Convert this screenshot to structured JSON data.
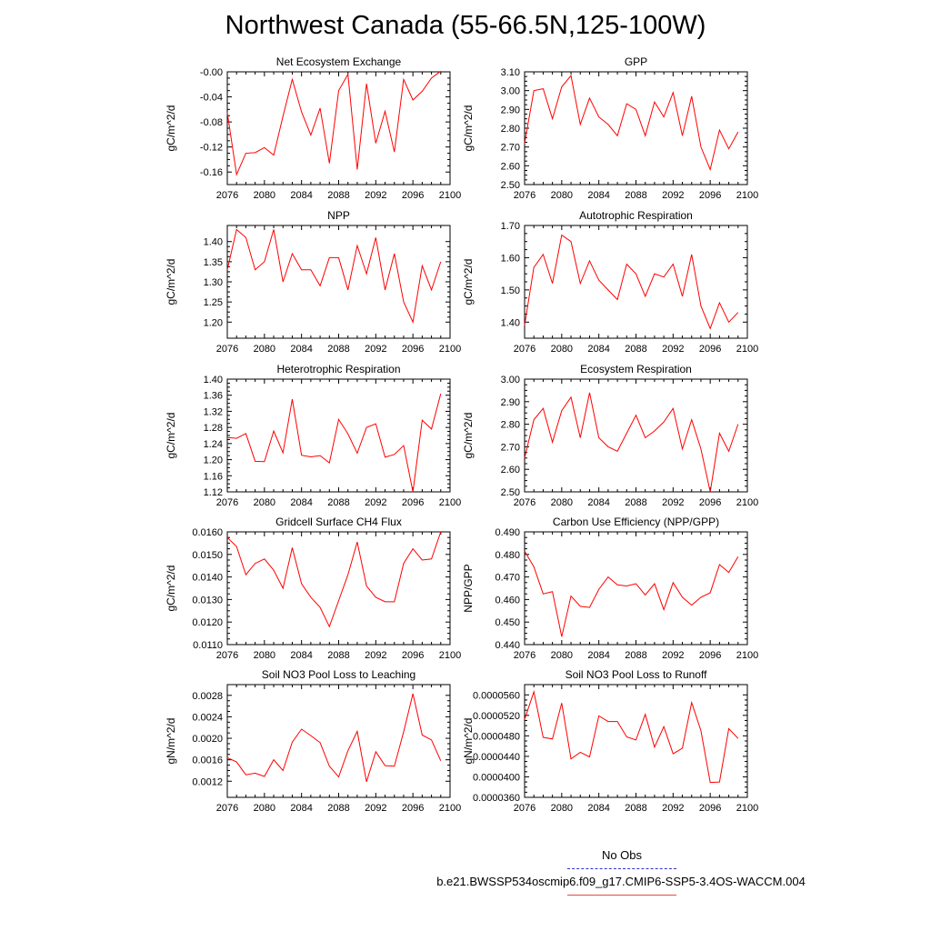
{
  "title": "Northwest Canada (55-66.5N,125-100W)",
  "colors": {
    "series": "#ff0000",
    "obs": "#3333cc",
    "axis": "#000000"
  },
  "legend": {
    "obs_label": "No Obs",
    "run_label": "b.e21.BWSSP534oscmip6.f09_g17.CMIP6-SSP5-3.4OS-WACCM.004"
  },
  "chart_data": [
    {
      "type": "line",
      "title": "Net Ecosystem Exchange",
      "xlabel": "",
      "ylabel": "gC/m^2/d",
      "xlim": [
        2076,
        2100
      ],
      "xticks": [
        "2076",
        "2080",
        "2084",
        "2088",
        "2092",
        "2096",
        "2100"
      ],
      "ylim": [
        -0.18,
        -0.0
      ],
      "yticks": [
        "-0.16",
        "-0.12",
        "-0.08",
        "-0.04",
        "-0.00"
      ],
      "x": [
        2076,
        2077,
        2078,
        2079,
        2080,
        2081,
        2082,
        2083,
        2084,
        2085,
        2086,
        2087,
        2088,
        2089,
        2090,
        2091,
        2092,
        2093,
        2094,
        2095,
        2096,
        2097,
        2098,
        2099
      ],
      "series": [
        {
          "name": "b.e21.BWSSP534oscmip6.f09_g17.CMIP6-SSP5-3.4OS-WACCM.004",
          "values": [
            -0.065,
            -0.164,
            -0.13,
            -0.129,
            -0.121,
            -0.133,
            -0.071,
            -0.012,
            -0.064,
            -0.101,
            -0.058,
            -0.146,
            -0.03,
            -0.004,
            -0.156,
            -0.019,
            -0.114,
            -0.063,
            -0.128,
            -0.012,
            -0.045,
            -0.031,
            -0.01,
            0.001
          ]
        }
      ]
    },
    {
      "type": "line",
      "title": "GPP",
      "xlabel": "",
      "ylabel": "gC/m^2/d",
      "xlim": [
        2076,
        2100
      ],
      "xticks": [
        "2076",
        "2080",
        "2084",
        "2088",
        "2092",
        "2096",
        "2100"
      ],
      "ylim": [
        2.5,
        3.1
      ],
      "yticks": [
        "2.50",
        "2.60",
        "2.70",
        "2.80",
        "2.90",
        "3.00",
        "3.10"
      ],
      "x": [
        2076,
        2077,
        2078,
        2079,
        2080,
        2081,
        2082,
        2083,
        2084,
        2085,
        2086,
        2087,
        2088,
        2089,
        2090,
        2091,
        2092,
        2093,
        2094,
        2095,
        2096,
        2097,
        2098,
        2099
      ],
      "series": [
        {
          "name": "b.e21.BWSSP534oscmip6.f09_g17.CMIP6-SSP5-3.4OS-WACCM.004",
          "values": [
            2.72,
            3.0,
            3.01,
            2.85,
            3.02,
            3.08,
            2.82,
            2.96,
            2.86,
            2.82,
            2.76,
            2.93,
            2.9,
            2.76,
            2.94,
            2.86,
            2.99,
            2.76,
            2.97,
            2.7,
            2.58,
            2.79,
            2.69,
            2.78
          ]
        }
      ]
    },
    {
      "type": "line",
      "title": "NPP",
      "xlabel": "",
      "ylabel": "gC/m^2/d",
      "xlim": [
        2076,
        2100
      ],
      "xticks": [
        "2076",
        "2080",
        "2084",
        "2088",
        "2092",
        "2096",
        "2100"
      ],
      "ylim": [
        1.16,
        1.44
      ],
      "yticks": [
        "1.20",
        "1.25",
        "1.30",
        "1.35",
        "1.40"
      ],
      "x": [
        2076,
        2077,
        2078,
        2079,
        2080,
        2081,
        2082,
        2083,
        2084,
        2085,
        2086,
        2087,
        2088,
        2089,
        2090,
        2091,
        2092,
        2093,
        2094,
        2095,
        2096,
        2097,
        2098,
        2099
      ],
      "series": [
        {
          "name": "b.e21.BWSSP534oscmip6.f09_g17.CMIP6-SSP5-3.4OS-WACCM.004",
          "values": [
            1.33,
            1.43,
            1.41,
            1.33,
            1.35,
            1.43,
            1.3,
            1.37,
            1.33,
            1.33,
            1.29,
            1.36,
            1.36,
            1.28,
            1.39,
            1.32,
            1.41,
            1.28,
            1.37,
            1.25,
            1.2,
            1.34,
            1.28,
            1.35
          ]
        }
      ]
    },
    {
      "type": "line",
      "title": "Autotrophic Respiration",
      "xlabel": "",
      "ylabel": "gC/m^2/d",
      "xlim": [
        2076,
        2100
      ],
      "xticks": [
        "2076",
        "2080",
        "2084",
        "2088",
        "2092",
        "2096",
        "2100"
      ],
      "ylim": [
        1.35,
        1.7
      ],
      "yticks": [
        "1.40",
        "1.50",
        "1.60",
        "1.70"
      ],
      "x": [
        2076,
        2077,
        2078,
        2079,
        2080,
        2081,
        2082,
        2083,
        2084,
        2085,
        2086,
        2087,
        2088,
        2089,
        2090,
        2091,
        2092,
        2093,
        2094,
        2095,
        2096,
        2097,
        2098,
        2099
      ],
      "series": [
        {
          "name": "b.e21.BWSSP534oscmip6.f09_g17.CMIP6-SSP5-3.4OS-WACCM.004",
          "values": [
            1.39,
            1.57,
            1.61,
            1.52,
            1.67,
            1.65,
            1.52,
            1.59,
            1.53,
            1.5,
            1.47,
            1.58,
            1.55,
            1.48,
            1.55,
            1.54,
            1.58,
            1.48,
            1.61,
            1.45,
            1.38,
            1.46,
            1.4,
            1.43
          ]
        }
      ]
    },
    {
      "type": "line",
      "title": "Heterotrophic Respiration",
      "xlabel": "",
      "ylabel": "gC/m^2/d",
      "xlim": [
        2076,
        2100
      ],
      "xticks": [
        "2076",
        "2080",
        "2084",
        "2088",
        "2092",
        "2096",
        "2100"
      ],
      "ylim": [
        1.12,
        1.4
      ],
      "yticks": [
        "1.12",
        "1.16",
        "1.20",
        "1.24",
        "1.28",
        "1.32",
        "1.36",
        "1.40"
      ],
      "x": [
        2076,
        2077,
        2078,
        2079,
        2080,
        2081,
        2082,
        2083,
        2084,
        2085,
        2086,
        2087,
        2088,
        2089,
        2090,
        2091,
        2092,
        2093,
        2094,
        2095,
        2096,
        2097,
        2098,
        2099
      ],
      "series": [
        {
          "name": "b.e21.BWSSP534oscmip6.f09_g17.CMIP6-SSP5-3.4OS-WACCM.004",
          "values": [
            1.255,
            1.253,
            1.265,
            1.196,
            1.195,
            1.271,
            1.217,
            1.35,
            1.211,
            1.207,
            1.21,
            1.192,
            1.3,
            1.264,
            1.216,
            1.28,
            1.289,
            1.206,
            1.213,
            1.235,
            1.12,
            1.298,
            1.276,
            1.364
          ]
        }
      ]
    },
    {
      "type": "line",
      "title": "Ecosystem Respiration",
      "xlabel": "",
      "ylabel": "gC/m^2/d",
      "xlim": [
        2076,
        2100
      ],
      "xticks": [
        "2076",
        "2080",
        "2084",
        "2088",
        "2092",
        "2096",
        "2100"
      ],
      "ylim": [
        2.5,
        3.0
      ],
      "yticks": [
        "2.50",
        "2.60",
        "2.70",
        "2.80",
        "2.90",
        "3.00"
      ],
      "x": [
        2076,
        2077,
        2078,
        2079,
        2080,
        2081,
        2082,
        2083,
        2084,
        2085,
        2086,
        2087,
        2088,
        2089,
        2090,
        2091,
        2092,
        2093,
        2094,
        2095,
        2096,
        2097,
        2098,
        2099
      ],
      "series": [
        {
          "name": "b.e21.BWSSP534oscmip6.f09_g17.CMIP6-SSP5-3.4OS-WACCM.004",
          "values": [
            2.65,
            2.82,
            2.87,
            2.72,
            2.86,
            2.92,
            2.74,
            2.94,
            2.74,
            2.7,
            2.68,
            2.76,
            2.84,
            2.74,
            2.77,
            2.81,
            2.87,
            2.69,
            2.82,
            2.69,
            2.5,
            2.76,
            2.68,
            2.8
          ]
        }
      ]
    },
    {
      "type": "line",
      "title": "Gridcell Surface CH4 Flux",
      "xlabel": "",
      "ylabel": "gC/m^2/d",
      "xlim": [
        2076,
        2100
      ],
      "xticks": [
        "2076",
        "2080",
        "2084",
        "2088",
        "2092",
        "2096",
        "2100"
      ],
      "ylim": [
        0.011,
        0.016
      ],
      "yticks": [
        "0.0110",
        "0.0120",
        "0.0130",
        "0.0140",
        "0.0150",
        "0.0160"
      ],
      "x": [
        2076,
        2077,
        2078,
        2079,
        2080,
        2081,
        2082,
        2083,
        2084,
        2085,
        2086,
        2087,
        2088,
        2089,
        2090,
        2091,
        2092,
        2093,
        2094,
        2095,
        2096,
        2097,
        2098,
        2099
      ],
      "series": [
        {
          "name": "b.e21.BWSSP534oscmip6.f09_g17.CMIP6-SSP5-3.4OS-WACCM.004",
          "values": [
            0.01575,
            0.01535,
            0.0141,
            0.0146,
            0.0148,
            0.0143,
            0.0135,
            0.0153,
            0.0137,
            0.0131,
            0.01265,
            0.0118,
            0.01295,
            0.0141,
            0.01555,
            0.0136,
            0.0131,
            0.0129,
            0.0129,
            0.0146,
            0.01525,
            0.01475,
            0.0148,
            0.016
          ]
        }
      ]
    },
    {
      "type": "line",
      "title": "Carbon Use Efficiency (NPP/GPP)",
      "xlabel": "",
      "ylabel": "NPP/GPP",
      "xlim": [
        2076,
        2100
      ],
      "xticks": [
        "2076",
        "2080",
        "2084",
        "2088",
        "2092",
        "2096",
        "2100"
      ],
      "ylim": [
        0.44,
        0.49
      ],
      "yticks": [
        "0.440",
        "0.450",
        "0.460",
        "0.470",
        "0.480",
        "0.490"
      ],
      "x": [
        2076,
        2077,
        2078,
        2079,
        2080,
        2081,
        2082,
        2083,
        2084,
        2085,
        2086,
        2087,
        2088,
        2089,
        2090,
        2091,
        2092,
        2093,
        2094,
        2095,
        2096,
        2097,
        2098,
        2099
      ],
      "series": [
        {
          "name": "b.e21.BWSSP534oscmip6.f09_g17.CMIP6-SSP5-3.4OS-WACCM.004",
          "values": [
            0.4815,
            0.4745,
            0.4625,
            0.4635,
            0.4435,
            0.4615,
            0.457,
            0.4565,
            0.4645,
            0.47,
            0.4665,
            0.466,
            0.467,
            0.462,
            0.467,
            0.4555,
            0.4675,
            0.461,
            0.4575,
            0.461,
            0.463,
            0.4755,
            0.472,
            0.479
          ]
        }
      ]
    },
    {
      "type": "line",
      "title": "Soil NO3 Pool Loss to Leaching",
      "xlabel": "",
      "ylabel": "gN/m^2/d",
      "xlim": [
        2076,
        2100
      ],
      "xticks": [
        "2076",
        "2080",
        "2084",
        "2088",
        "2092",
        "2096",
        "2100"
      ],
      "ylim": [
        0.0009,
        0.003
      ],
      "yticks": [
        "0.0012",
        "0.0016",
        "0.0020",
        "0.0024",
        "0.0028"
      ],
      "x": [
        2076,
        2077,
        2078,
        2079,
        2080,
        2081,
        2082,
        2083,
        2084,
        2085,
        2086,
        2087,
        2088,
        2089,
        2090,
        2091,
        2092,
        2093,
        2094,
        2095,
        2096,
        2097,
        2098,
        2099
      ],
      "series": [
        {
          "name": "b.e21.BWSSP534oscmip6.f09_g17.CMIP6-SSP5-3.4OS-WACCM.004",
          "values": [
            0.00164,
            0.00156,
            0.00132,
            0.00135,
            0.00129,
            0.0016,
            0.0014,
            0.00193,
            0.00217,
            0.00205,
            0.00192,
            0.00148,
            0.00128,
            0.00177,
            0.00213,
            0.00119,
            0.00175,
            0.00149,
            0.00148,
            0.00212,
            0.00283,
            0.00206,
            0.00197,
            0.00158
          ]
        }
      ]
    },
    {
      "type": "line",
      "title": "Soil NO3 Pool Loss to Runoff",
      "xlabel": "",
      "ylabel": "gN/m^2/d",
      "xlim": [
        2076,
        2100
      ],
      "xticks": [
        "2076",
        "2080",
        "2084",
        "2088",
        "2092",
        "2096",
        "2100"
      ],
      "ylim": [
        3.6e-05,
        5.8e-05
      ],
      "yticks": [
        "0.0000360",
        "0.0000400",
        "0.0000440",
        "0.0000480",
        "0.0000520",
        "0.0000560"
      ],
      "x": [
        2076,
        2077,
        2078,
        2079,
        2080,
        2081,
        2082,
        2083,
        2084,
        2085,
        2086,
        2087,
        2088,
        2089,
        2090,
        2091,
        2092,
        2093,
        2094,
        2095,
        2096,
        2097,
        2098,
        2099
      ],
      "series": [
        {
          "name": "b.e21.BWSSP534oscmip6.f09_g17.CMIP6-SSP5-3.4OS-WACCM.004",
          "values": [
            5.12e-05,
            5.66e-05,
            4.77e-05,
            4.74e-05,
            5.44e-05,
            4.35e-05,
            4.48e-05,
            4.39e-05,
            5.19e-05,
            5.08e-05,
            5.08e-05,
            4.78e-05,
            4.72e-05,
            5.22e-05,
            4.58e-05,
            4.98e-05,
            4.45e-05,
            4.56e-05,
            5.45e-05,
            4.9e-05,
            3.89e-05,
            3.9e-05,
            4.94e-05,
            4.75e-05
          ]
        }
      ]
    }
  ]
}
